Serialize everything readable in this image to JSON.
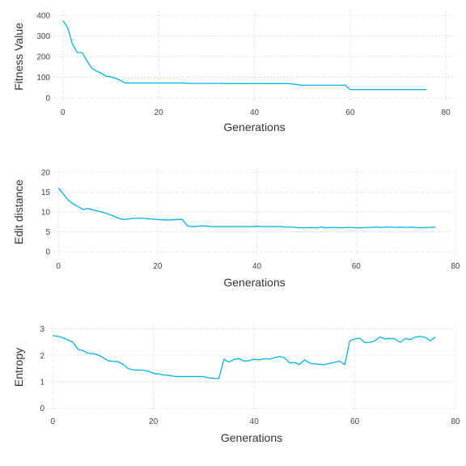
{
  "colors": {
    "series": "#00b2e8",
    "grid": "#d9d9d9",
    "text": "#333333"
  },
  "chart_data": [
    {
      "type": "line",
      "title": "",
      "xlabel": "Generations",
      "ylabel": "Fitness Value",
      "xlim": [
        -2,
        82
      ],
      "ylim": [
        -20,
        420
      ],
      "xticks": [
        0,
        20,
        40,
        60,
        80
      ],
      "yticks": [
        0,
        100,
        200,
        300,
        400
      ],
      "grid": true,
      "legend": "none",
      "series": [
        {
          "x": [
            0,
            1,
            2,
            3,
            4,
            5,
            6,
            7,
            8,
            9,
            10,
            11,
            12,
            13,
            14,
            15,
            16,
            17,
            18,
            19,
            20,
            21,
            22,
            23,
            24,
            25,
            26,
            27,
            28,
            29,
            30,
            31,
            32,
            33,
            34,
            35,
            36,
            37,
            38,
            39,
            40,
            41,
            42,
            43,
            44,
            45,
            46,
            47,
            48,
            49,
            50,
            51,
            52,
            53,
            54,
            55,
            56,
            57,
            58,
            59,
            60,
            61,
            62,
            63,
            64,
            65,
            66,
            67,
            68,
            69,
            70,
            71,
            72,
            73,
            74,
            75,
            76
          ],
          "y": [
            375,
            340,
            260,
            220,
            220,
            180,
            145,
            130,
            120,
            105,
            102,
            95,
            85,
            72,
            72,
            72,
            72,
            72,
            72,
            72,
            72,
            72,
            72,
            72,
            72,
            72,
            70,
            70,
            70,
            70,
            70,
            70,
            70,
            70,
            69,
            69,
            69,
            69,
            69,
            69,
            69,
            69,
            69,
            69,
            69,
            69,
            69,
            69,
            67,
            64,
            61,
            61,
            61,
            61,
            61,
            61,
            61,
            61,
            61,
            61,
            40,
            40,
            40,
            40,
            40,
            40,
            40,
            40,
            40,
            40,
            40,
            40,
            40,
            40,
            40,
            40,
            40
          ]
        }
      ]
    },
    {
      "type": "line",
      "title": "",
      "xlabel": "Generations",
      "ylabel": "Edit distance",
      "xlim": [
        -1,
        80
      ],
      "ylim": [
        -1,
        21
      ],
      "xticks": [
        0,
        20,
        40,
        60,
        80
      ],
      "yticks": [
        0,
        5,
        10,
        15,
        20
      ],
      "grid": true,
      "legend": "none",
      "series": [
        {
          "x": [
            0,
            1,
            2,
            3,
            4,
            5,
            6,
            7,
            8,
            9,
            10,
            11,
            12,
            13,
            14,
            15,
            16,
            17,
            18,
            19,
            20,
            21,
            22,
            23,
            24,
            25,
            26,
            27,
            28,
            29,
            30,
            31,
            32,
            33,
            34,
            35,
            36,
            37,
            38,
            39,
            40,
            41,
            42,
            43,
            44,
            45,
            46,
            47,
            48,
            49,
            50,
            51,
            52,
            53,
            54,
            55,
            56,
            57,
            58,
            59,
            60,
            61,
            62,
            63,
            64,
            65,
            66,
            67,
            68,
            69,
            70,
            71,
            72,
            73,
            74,
            75,
            76
          ],
          "y": [
            16,
            14.5,
            13,
            12,
            11.3,
            10.6,
            10.9,
            10.5,
            10.2,
            9.9,
            9.5,
            9.0,
            8.5,
            8.1,
            8.2,
            8.4,
            8.4,
            8.4,
            8.3,
            8.2,
            8.1,
            8.0,
            8.0,
            8.0,
            8.1,
            8.1,
            6.5,
            6.3,
            6.4,
            6.5,
            6.4,
            6.3,
            6.3,
            6.3,
            6.3,
            6.3,
            6.3,
            6.3,
            6.3,
            6.3,
            6.4,
            6.3,
            6.3,
            6.3,
            6.3,
            6.3,
            6.2,
            6.2,
            6.1,
            6.0,
            6.0,
            6.1,
            6.0,
            6.2,
            6.0,
            6.1,
            6.1,
            6.0,
            6.1,
            6.1,
            6.0,
            6.0,
            6.1,
            6.1,
            6.2,
            6.1,
            6.2,
            6.2,
            6.1,
            6.2,
            6.1,
            6.2,
            6.1,
            6.0,
            6.1,
            6.1,
            6.2
          ]
        }
      ]
    },
    {
      "type": "line",
      "title": "",
      "xlabel": "Generations",
      "ylabel": "Entropy",
      "xlim": [
        -1,
        80
      ],
      "ylim": [
        -0.1,
        3.2
      ],
      "xticks": [
        0,
        20,
        40,
        60,
        80
      ],
      "yticks": [
        0,
        1,
        2,
        3
      ],
      "grid": true,
      "legend": "none",
      "series": [
        {
          "x": [
            0,
            1,
            2,
            3,
            4,
            5,
            6,
            7,
            8,
            9,
            10,
            11,
            12,
            13,
            14,
            15,
            16,
            17,
            18,
            19,
            20,
            21,
            22,
            23,
            24,
            25,
            26,
            27,
            28,
            29,
            30,
            31,
            32,
            33,
            34,
            35,
            36,
            37,
            38,
            39,
            40,
            41,
            42,
            43,
            44,
            45,
            46,
            47,
            48,
            49,
            50,
            51,
            52,
            53,
            54,
            55,
            56,
            57,
            58,
            59,
            60,
            61,
            62,
            63,
            64,
            65,
            66,
            67,
            68,
            69,
            70,
            71,
            72,
            73,
            74,
            75,
            76
          ],
          "y": [
            2.75,
            2.72,
            2.67,
            2.58,
            2.5,
            2.23,
            2.18,
            2.08,
            2.07,
            2.02,
            1.92,
            1.8,
            1.78,
            1.76,
            1.66,
            1.5,
            1.45,
            1.45,
            1.44,
            1.4,
            1.32,
            1.3,
            1.26,
            1.25,
            1.21,
            1.2,
            1.2,
            1.2,
            1.2,
            1.2,
            1.2,
            1.15,
            1.13,
            1.13,
            1.85,
            1.75,
            1.85,
            1.88,
            1.78,
            1.8,
            1.86,
            1.83,
            1.87,
            1.86,
            1.91,
            1.96,
            1.92,
            1.72,
            1.73,
            1.66,
            1.83,
            1.71,
            1.68,
            1.66,
            1.65,
            1.7,
            1.74,
            1.78,
            1.65,
            2.55,
            2.62,
            2.65,
            2.48,
            2.49,
            2.55,
            2.7,
            2.62,
            2.64,
            2.62,
            2.49,
            2.63,
            2.6,
            2.69,
            2.71,
            2.68,
            2.55,
            2.7
          ]
        }
      ]
    }
  ]
}
